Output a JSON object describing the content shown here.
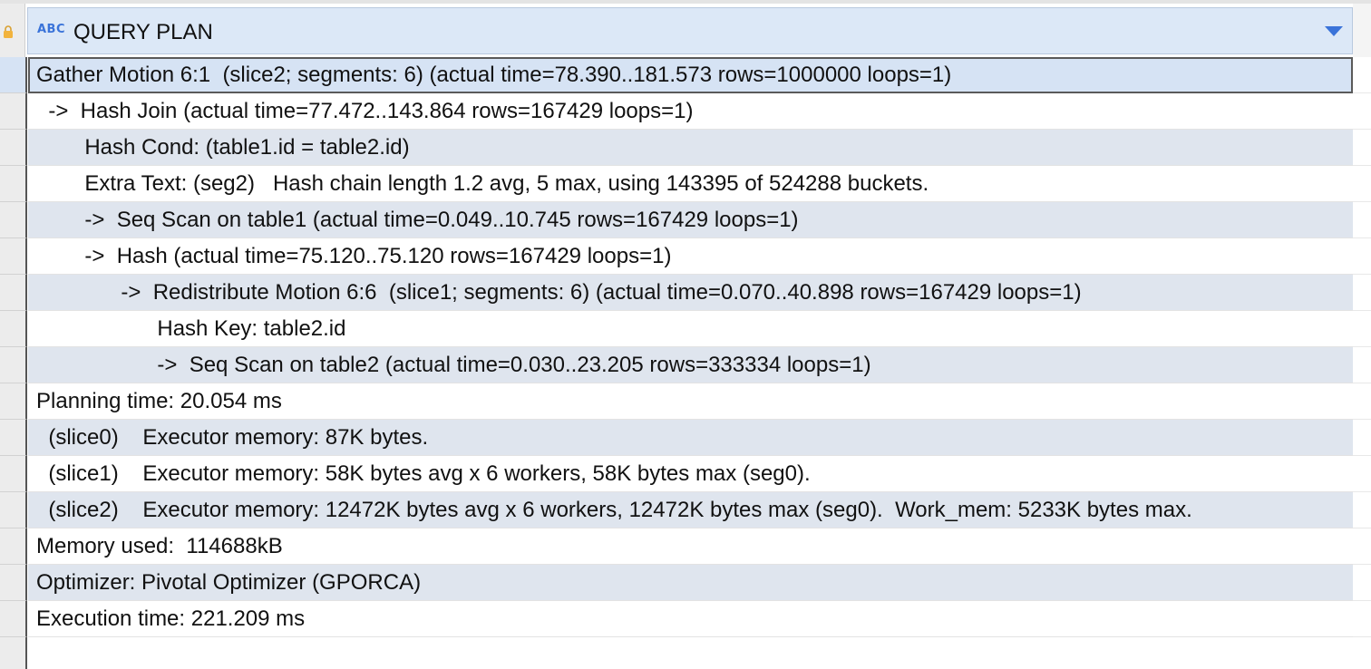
{
  "column": {
    "type_icon": "ABC",
    "title": "QUERY PLAN"
  },
  "rows": [
    "Gather Motion 6:1  (slice2; segments: 6) (actual time=78.390..181.573 rows=1000000 loops=1)",
    "  ->  Hash Join (actual time=77.472..143.864 rows=167429 loops=1)",
    "        Hash Cond: (table1.id = table2.id)",
    "        Extra Text: (seg2)   Hash chain length 1.2 avg, 5 max, using 143395 of 524288 buckets.",
    "        ->  Seq Scan on table1 (actual time=0.049..10.745 rows=167429 loops=1)",
    "        ->  Hash (actual time=75.120..75.120 rows=167429 loops=1)",
    "              ->  Redistribute Motion 6:6  (slice1; segments: 6) (actual time=0.070..40.898 rows=167429 loops=1)",
    "                    Hash Key: table2.id",
    "                    ->  Seq Scan on table2 (actual time=0.030..23.205 rows=333334 loops=1)",
    "Planning time: 20.054 ms",
    "  (slice0)    Executor memory: 87K bytes.",
    "  (slice1)    Executor memory: 58K bytes avg x 6 workers, 58K bytes max (seg0).",
    "  (slice2)    Executor memory: 12472K bytes avg x 6 workers, 12472K bytes max (seg0).  Work_mem: 5233K bytes max.",
    "Memory used:  114688kB",
    "Optimizer: Pivotal Optimizer (GPORCA)",
    "Execution time: 221.209 ms"
  ],
  "icons": {
    "lock": "lock-icon",
    "column_type": "text-type-icon",
    "sort": "sort-dropdown-icon"
  },
  "colors": {
    "header_bg": "#dce8f7",
    "alt_row_bg": "#dfe5ee",
    "accent": "#3a73d9",
    "lock": "#f2b33d"
  }
}
